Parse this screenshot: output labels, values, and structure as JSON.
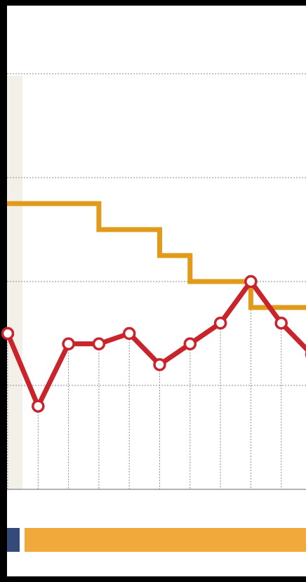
{
  "colors": {
    "background": "#000000",
    "panel": "#ffffff",
    "strip": "#f3f0ea",
    "gold_line": "#e19a1a",
    "red_line": "#c9232b",
    "grid": "#8a8a8a",
    "bar_navy": "#344a7a",
    "bar_gold": "#f0a93a"
  },
  "chart_data": {
    "type": "line",
    "title": "",
    "xlabel": "",
    "ylabel": "",
    "ylim": [
      0,
      4
    ],
    "grid": true,
    "series": [
      {
        "style": "step",
        "color": "#e19a1a",
        "x": [
          0,
          1,
          2,
          3,
          4,
          5,
          6,
          7,
          8,
          9,
          10
        ],
        "values": [
          2.75,
          2.75,
          2.75,
          2.5,
          2.5,
          2.25,
          2.0,
          2.0,
          1.75,
          1.75,
          1.75
        ]
      },
      {
        "style": "line-markers",
        "color": "#c9232b",
        "x": [
          0,
          1,
          2,
          3,
          4,
          5,
          6,
          7,
          8,
          9,
          10
        ],
        "values": [
          1.5,
          0.8,
          1.4,
          1.4,
          1.5,
          1.2,
          1.4,
          1.6,
          2.0,
          1.6,
          1.3
        ]
      }
    ]
  }
}
